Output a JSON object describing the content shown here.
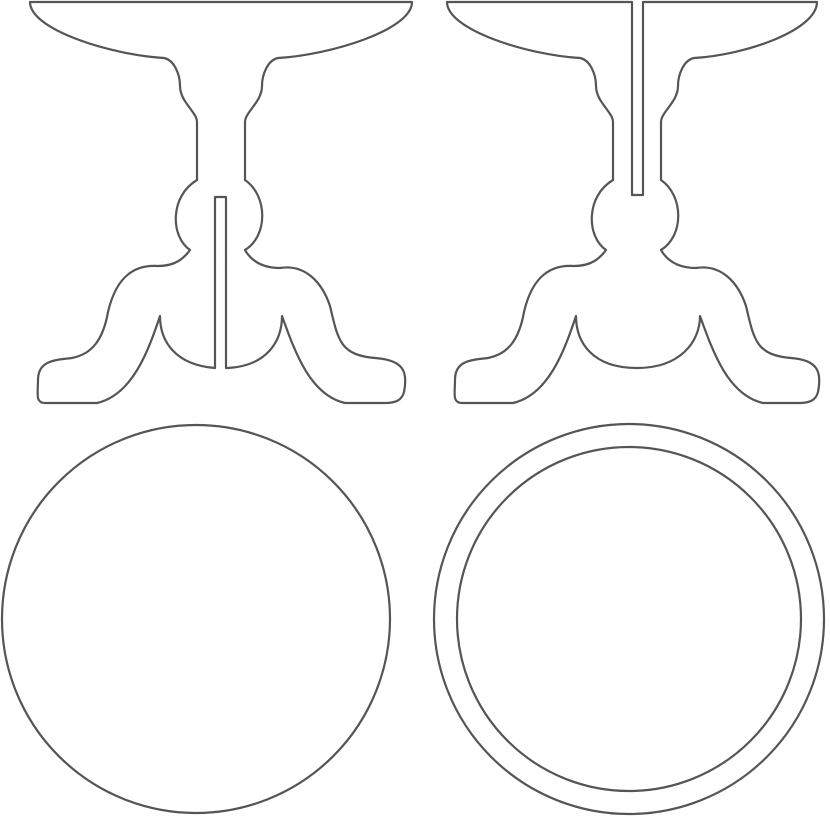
{
  "template": {
    "parts": [
      {
        "id": "pedestal-side-a",
        "kind": "table-base-profile",
        "slot": "bottom"
      },
      {
        "id": "pedestal-side-b",
        "kind": "table-base-profile",
        "slot": "top"
      },
      {
        "id": "tabletop-disc",
        "kind": "circle"
      },
      {
        "id": "tabletop-ring",
        "kind": "double-circle"
      }
    ]
  },
  "style": {
    "outline_color": "#555555",
    "fill_color": "#ffffff"
  }
}
